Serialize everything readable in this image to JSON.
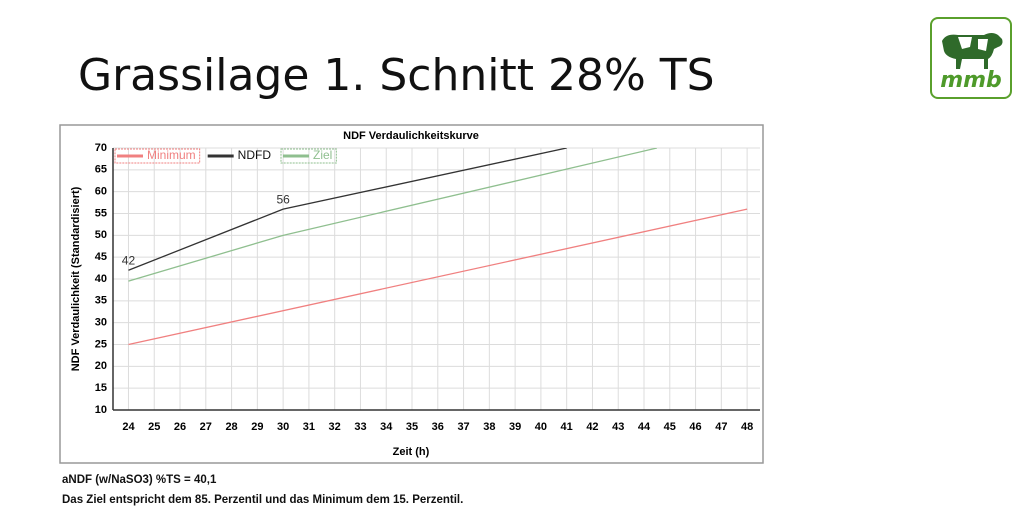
{
  "title": "Grassilage 1. Schnitt 28% TS",
  "logo": "mmb",
  "chart_data": {
    "type": "line",
    "title": "NDF Verdaulichkeitskurve",
    "xlabel": "Zeit (h)",
    "ylabel": "NDF Verdaulichkeit (Standardisiert)",
    "xlim": [
      23.4,
      48.5
    ],
    "xticks": [
      24,
      25,
      26,
      27,
      28,
      29,
      30,
      31,
      32,
      33,
      34,
      35,
      36,
      37,
      38,
      39,
      40,
      41,
      42,
      43,
      44,
      45,
      46,
      47,
      48
    ],
    "ylim": [
      10,
      70
    ],
    "yticks": [
      10,
      15,
      20,
      25,
      30,
      35,
      40,
      45,
      50,
      55,
      60,
      65,
      70
    ],
    "grid": true,
    "legend": "top-left",
    "series": [
      {
        "name": "Minimum",
        "color": "#f08080",
        "x": [
          24,
          48
        ],
        "values": [
          25,
          56
        ]
      },
      {
        "name": "NDFD",
        "color": "#333333",
        "x": [
          24,
          30,
          41
        ],
        "values": [
          42,
          56,
          70
        ],
        "label_points": [
          0,
          1
        ]
      },
      {
        "name": "Ziel",
        "color": "#8fbf8f",
        "x": [
          24,
          30,
          44.5
        ],
        "values": [
          39.5,
          50,
          70
        ]
      }
    ]
  },
  "notes": [
    "aNDF (w/NaSO3) %TS = 40,1",
    "Das Ziel entspricht dem 85. Perzentil und das Minimum dem 15. Perzentil."
  ]
}
